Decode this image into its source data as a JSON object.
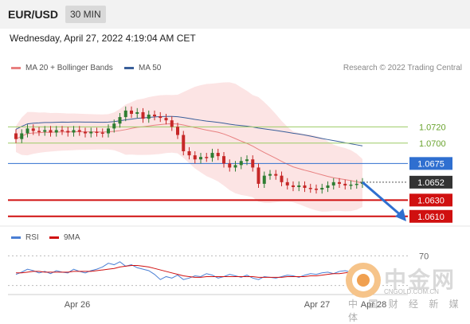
{
  "header": {
    "pair": "EUR/USD",
    "timeframe": "30 MIN"
  },
  "timestamp": "Wednesday, April 27, 2022 4:19:04 AM CET",
  "legend": {
    "ma20": "MA 20 + Bollinger Bands",
    "ma50": "MA 50",
    "credit": "Research © 2022 Trading Central"
  },
  "colors": {
    "ma20": "#e88080",
    "ma50": "#3a5f9a",
    "up": "#2e7d32",
    "down": "#c62828",
    "pivot": "#2f6fd0",
    "support": "#d01010",
    "resistance": "#9ccc65",
    "rsi": "#4a7fd4",
    "ma9": "#d01010"
  },
  "chart_data": {
    "type": "candlestick",
    "x_ticks": [
      "Apr 26",
      "Apr 27",
      "Apr 28"
    ],
    "y_range": [
      1.06,
      1.078
    ],
    "last_price": "1.0652",
    "levels": [
      {
        "label": "1.0720",
        "value": 1.072,
        "kind": "resistance"
      },
      {
        "label": "1.0700",
        "value": 1.07,
        "kind": "resistance"
      },
      {
        "label": "1.0675",
        "value": 1.0675,
        "kind": "pivot"
      },
      {
        "label": "1.0630",
        "value": 1.063,
        "kind": "support"
      },
      {
        "label": "1.0610",
        "value": 1.061,
        "kind": "support"
      }
    ],
    "candles_close": [
      1.0705,
      1.0712,
      1.0718,
      1.0715,
      1.0714,
      1.0716,
      1.0713,
      1.0716,
      1.0715,
      1.0713,
      1.0716,
      1.0714,
      1.0712,
      1.0714,
      1.0713,
      1.0712,
      1.0718,
      1.0724,
      1.0732,
      1.074,
      1.0736,
      1.0738,
      1.073,
      1.0735,
      1.0733,
      1.0731,
      1.0728,
      1.072,
      1.071,
      1.069,
      1.0685,
      1.068,
      1.0683,
      1.0682,
      1.0688,
      1.0684,
      1.0675,
      1.067,
      1.0673,
      1.0678,
      1.068,
      1.067,
      1.065,
      1.066,
      1.0662,
      1.066,
      1.0652,
      1.0648,
      1.0646,
      1.0648,
      1.0645,
      1.0644,
      1.0643,
      1.0645,
      1.0648,
      1.0652,
      1.065,
      1.0648,
      1.0649,
      1.065,
      1.0652
    ],
    "candles_open": [
      1.0712,
      1.0705,
      1.0712,
      1.0718,
      1.0715,
      1.0714,
      1.0716,
      1.0713,
      1.0716,
      1.0715,
      1.0713,
      1.0716,
      1.0714,
      1.0712,
      1.0714,
      1.0713,
      1.0712,
      1.0718,
      1.0724,
      1.0732,
      1.074,
      1.0736,
      1.0738,
      1.073,
      1.0735,
      1.0733,
      1.0731,
      1.0728,
      1.072,
      1.071,
      1.069,
      1.0685,
      1.068,
      1.0683,
      1.0682,
      1.0688,
      1.0684,
      1.0675,
      1.067,
      1.0673,
      1.0678,
      1.068,
      1.067,
      1.065,
      1.066,
      1.0662,
      1.066,
      1.0652,
      1.0648,
      1.0646,
      1.0648,
      1.0645,
      1.0644,
      1.0643,
      1.0645,
      1.0648,
      1.0652,
      1.065,
      1.0648,
      1.0649,
      1.065
    ],
    "rsi": {
      "legend_rsi": "RSI",
      "legend_ma": "9MA",
      "level_label": "70",
      "values": [
        45,
        48,
        52,
        50,
        47,
        49,
        46,
        50,
        48,
        47,
        52,
        49,
        47,
        50,
        52,
        55,
        60,
        58,
        62,
        56,
        58,
        54,
        52,
        50,
        45,
        38,
        42,
        40,
        44,
        38,
        40,
        43,
        42,
        46,
        44,
        40,
        42,
        45,
        43,
        41,
        44,
        40,
        38,
        42,
        41,
        40,
        42,
        44,
        43,
        41,
        44,
        46,
        45,
        47,
        48,
        46,
        49,
        50,
        48,
        52,
        55
      ],
      "ma_values": [
        47,
        47,
        48,
        49,
        49,
        48,
        48,
        48,
        48,
        48,
        49,
        49,
        49,
        49,
        50,
        51,
        52,
        53,
        55,
        56,
        57,
        57,
        56,
        55,
        53,
        51,
        49,
        47,
        45,
        43,
        42,
        41,
        41,
        42,
        42,
        42,
        42,
        42,
        42,
        42,
        42,
        42,
        41,
        41,
        41,
        41,
        41,
        42,
        42,
        42,
        42,
        43,
        43,
        44,
        45,
        46,
        46,
        47,
        48,
        49,
        50
      ]
    }
  },
  "watermark": {
    "cn": "中金网",
    "sub": "中 国 财 经 新 媒 体",
    "url": "CNGOLD.COM.CN"
  }
}
